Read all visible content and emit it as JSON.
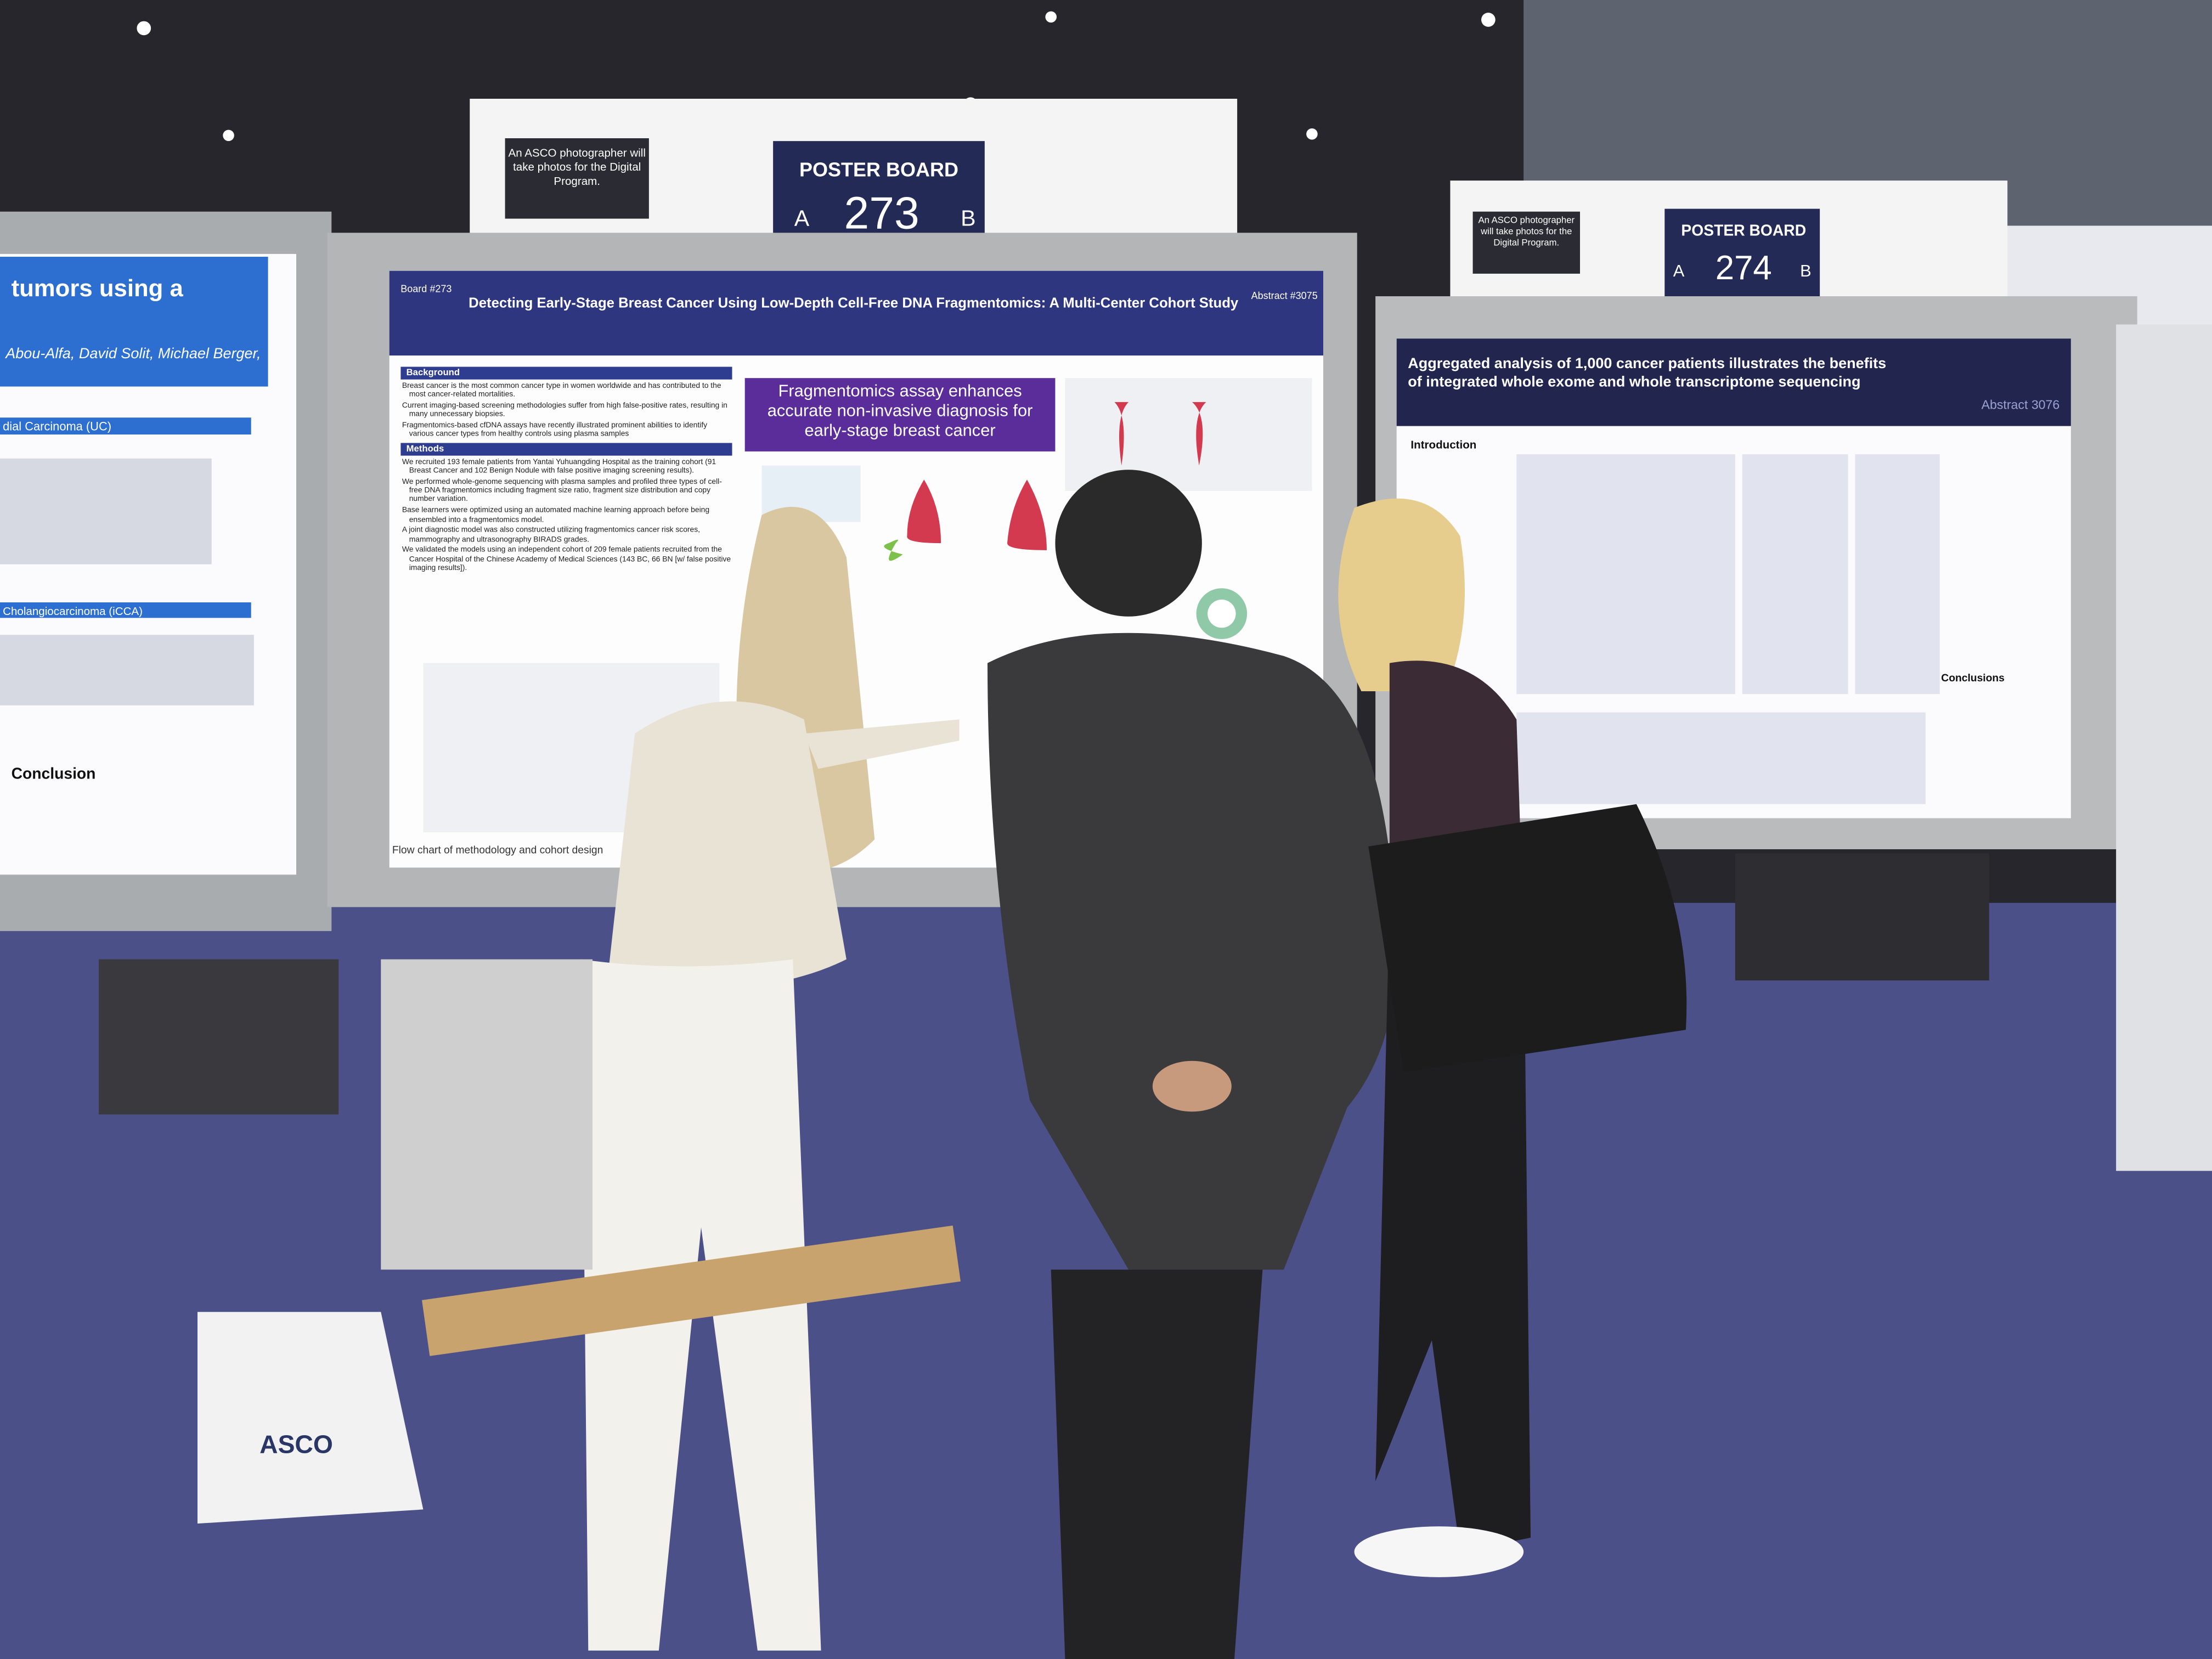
{
  "signs": [
    {
      "label": "POSTER BOARD",
      "number": "273",
      "left": "A",
      "right": "B",
      "note": "An ASCO photographer will take photos for the Digital Program."
    },
    {
      "label": "POSTER BOARD",
      "number": "274",
      "left": "A",
      "right": "B",
      "note": "An ASCO photographer will take photos for the Digital Program."
    }
  ],
  "left_poster": {
    "title": "tumors using a",
    "authors": "Abou-Alfa, David Solit, Michael Berger,",
    "section1": "dial Carcinoma (UC)",
    "section2": "Cholangiocarcinoma (iCCA)",
    "conclusion": "Conclusion"
  },
  "main_poster": {
    "board": "Board #273",
    "title": "Detecting Early-Stage Breast Cancer Using Low-Depth Cell-Free DNA Fragmentomics: A Multi-Center Cohort Study",
    "abstract": "Abstract #3075",
    "highlight": "Fragmentomics assay enhances accurate non-invasive diagnosis for early-stage breast cancer",
    "background_heading": "Background",
    "background": [
      "Breast cancer is the most common cancer type in women worldwide and has contributed to the most cancer-related mortalities.",
      "Current imaging-based screening methodologies suffer from high false-positive rates, resulting in many unnecessary biopsies.",
      "Fragmentomics-based cfDNA assays have recently illustrated prominent abilities to identify various cancer types from healthy controls using plasma samples"
    ],
    "methods_heading": "Methods",
    "methods": [
      "We recruited 193 female patients from Yantai Yuhuangding Hospital as the training cohort (91 Breast Cancer and 102 Benign Nodule with false positive imaging screening results).",
      "We performed whole-genome sequencing with plasma samples and profiled three types of cell-free DNA fragmentomics including fragment size ratio, fragment size distribution and copy number variation.",
      "Base learners were optimized using an automated machine learning approach before being ensembled into a fragmentomics model.",
      "A joint diagnostic model was also constructed utilizing fragmentomics cancer risk scores, mammography and ultrasonography BIRADS grades.",
      "We validated the models using an independent cohort of 209 female patients recruited from the Cancer Hospital of the Chinese Academy of Medical Sciences (143 BC, 66 BN [w/ false positive imaging results])."
    ],
    "caption": "Flow chart of methodology and cohort design"
  },
  "right_poster": {
    "title": "Aggregated analysis of 1,000 cancer patients illustrates the benefits of integrated whole exome and whole transcriptome sequencing",
    "abstract": "Abstract 3076",
    "intro": "Introduction",
    "conclusions": "Conclusions"
  },
  "bag": "ASCO"
}
